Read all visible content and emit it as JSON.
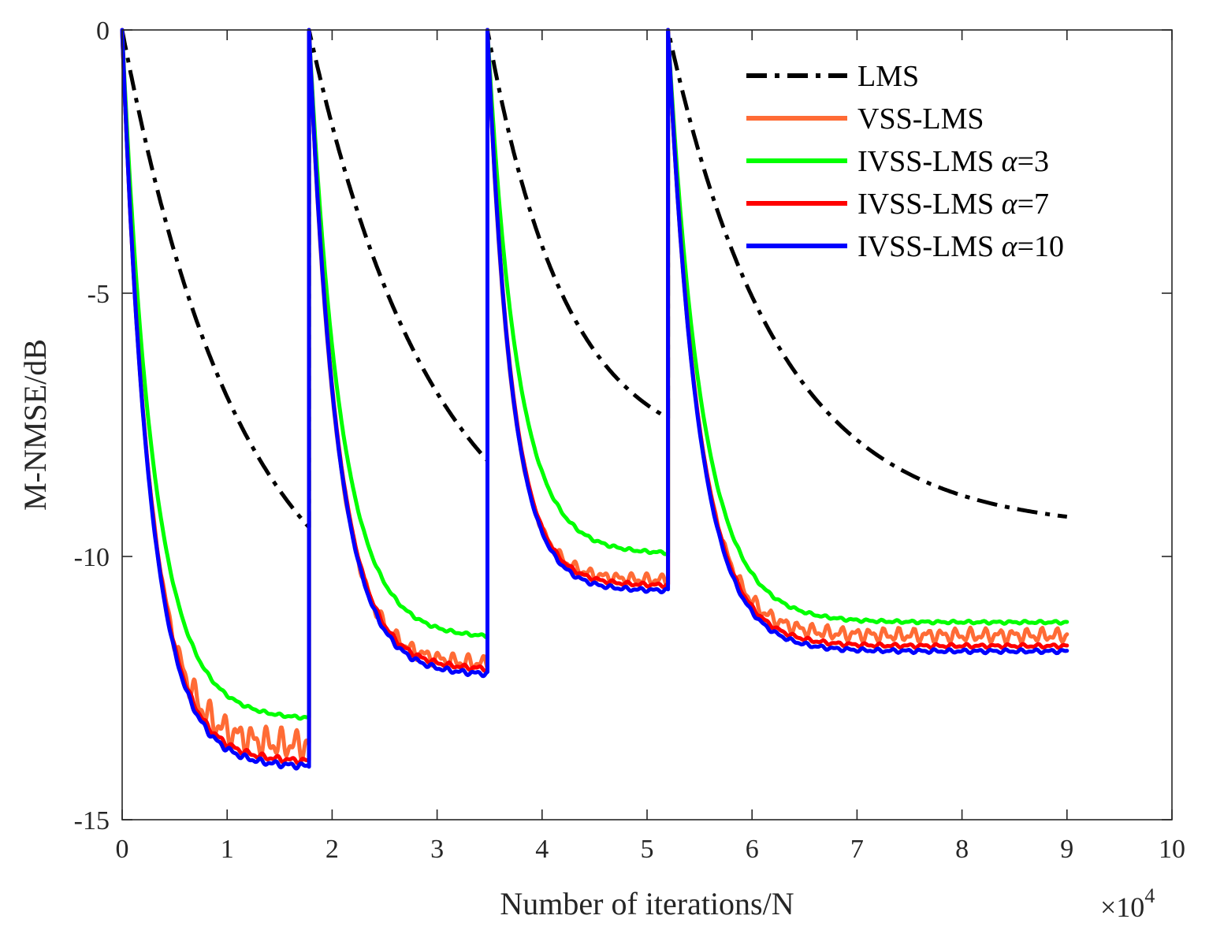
{
  "chart_data": {
    "type": "line",
    "title": "",
    "xlabel": "Number of iterations/N",
    "ylabel": "M-NMSE/dB",
    "x_multiplier_label": "×10",
    "x_multiplier_exponent": "4",
    "xlim": [
      0,
      10
    ],
    "ylim": [
      -15,
      0
    ],
    "xticks": [
      0,
      1,
      2,
      3,
      4,
      5,
      6,
      7,
      8,
      9,
      10
    ],
    "yticks": [
      0,
      -5,
      -10,
      -15
    ],
    "xtick_labels": [
      "0",
      "1",
      "2",
      "3",
      "4",
      "5",
      "6",
      "7",
      "8",
      "9",
      "10"
    ],
    "ytick_labels": [
      "0",
      "-5",
      "-10",
      "-15"
    ],
    "grid": false,
    "legend_position": "top-right",
    "segments": [
      [
        0,
        1.78
      ],
      [
        1.78,
        3.48
      ],
      [
        3.48,
        5.2
      ],
      [
        5.2,
        9.0
      ]
    ],
    "series": [
      {
        "name": "LMS",
        "label_main": "LMS",
        "label_alpha": "",
        "label_value": "",
        "color": "#000000",
        "dash": "dashdot",
        "width": 5,
        "params": [
          {
            "start": 0,
            "end": -12.0,
            "tau": 1.15,
            "ripple": 0.0
          },
          {
            "start": 0,
            "end": -10.8,
            "tau": 1.2,
            "ripple": 0.0
          },
          {
            "start": 0,
            "end": -8.2,
            "tau": 0.75,
            "ripple": 0.0
          },
          {
            "start": 0,
            "end": -9.5,
            "tau": 1.05,
            "ripple": 0.0
          }
        ]
      },
      {
        "name": "VSS-LMS",
        "label_main": "VSS-LMS",
        "label_alpha": "",
        "label_value": "",
        "color": "#FF6B35",
        "dash": "solid",
        "width": 5,
        "params": [
          {
            "start": 0,
            "end": -13.6,
            "tau": 0.26,
            "ripple": 0.32
          },
          {
            "start": 0,
            "end": -12.05,
            "tau": 0.26,
            "ripple": 0.16
          },
          {
            "start": 0,
            "end": -10.45,
            "tau": 0.22,
            "ripple": 0.12
          },
          {
            "start": 0,
            "end": -11.5,
            "tau": 0.28,
            "ripple": 0.15
          }
        ]
      },
      {
        "name": "IVSS-LMS α=3",
        "label_main": "IVSS-LMS ",
        "label_alpha": "α",
        "label_value": "=3",
        "color": "#00FF00",
        "dash": "solid",
        "width": 5,
        "params": [
          {
            "start": 0,
            "end": -13.1,
            "tau": 0.3,
            "ripple": 0.03
          },
          {
            "start": 0,
            "end": -11.55,
            "tau": 0.3,
            "ripple": 0.03
          },
          {
            "start": 0,
            "end": -9.95,
            "tau": 0.28,
            "ripple": 0.03
          },
          {
            "start": 0,
            "end": -11.25,
            "tau": 0.32,
            "ripple": 0.03
          }
        ]
      },
      {
        "name": "IVSS-LMS α=7",
        "label_main": "IVSS-LMS ",
        "label_alpha": "α",
        "label_value": "=7",
        "color": "#FF0000",
        "dash": "solid",
        "width": 5,
        "params": [
          {
            "start": 0,
            "end": -13.9,
            "tau": 0.27,
            "ripple": 0.06
          },
          {
            "start": 0,
            "end": -12.15,
            "tau": 0.27,
            "ripple": 0.05
          },
          {
            "start": 0,
            "end": -10.55,
            "tau": 0.23,
            "ripple": 0.04
          },
          {
            "start": 0,
            "end": -11.7,
            "tau": 0.29,
            "ripple": 0.04
          }
        ]
      },
      {
        "name": "IVSS-LMS α=10",
        "label_main": "IVSS-LMS ",
        "label_alpha": "α",
        "label_value": "=10",
        "color": "#0000FF",
        "dash": "solid",
        "width": 5,
        "params": [
          {
            "start": 0,
            "end": -14.0,
            "tau": 0.27,
            "ripple": 0.06
          },
          {
            "start": 0,
            "end": -12.25,
            "tau": 0.27,
            "ripple": 0.05
          },
          {
            "start": 0,
            "end": -10.65,
            "tau": 0.23,
            "ripple": 0.04
          },
          {
            "start": 0,
            "end": -11.8,
            "tau": 0.29,
            "ripple": 0.04
          }
        ]
      }
    ]
  }
}
